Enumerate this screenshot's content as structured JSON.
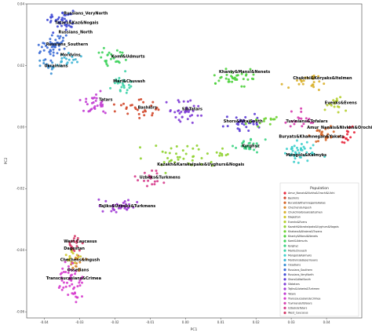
{
  "chart_data": {
    "type": "scatter",
    "title": "",
    "xlabel": "PC1",
    "ylabel": "PC2",
    "xlim": [
      -0.045,
      0.05
    ],
    "ylim": [
      -0.062,
      0.04
    ],
    "xticks": [
      -0.04,
      -0.03,
      -0.02,
      -0.01,
      0.0,
      0.01,
      0.02,
      0.03,
      0.04
    ],
    "xtick_labels": [
      "-0.04",
      "-0.03",
      "-0.02",
      "-0.01",
      "0.00",
      "0.01",
      "0.02",
      "0.03",
      "0.04"
    ],
    "yticks": [
      0.04,
      0.02,
      0.0,
      -0.02,
      -0.04,
      -0.06
    ],
    "ytick_labels": [
      "0.04",
      "0.02",
      "0.00",
      "-0.02",
      "-0.04",
      "-0.06"
    ],
    "grid": false,
    "legend": {
      "title": "Population",
      "placement": "lower-right",
      "entries": [
        {
          "name": "Amur_Nanais&Nivkhs&Orochi&Ulchi",
          "color": "#e8243a"
        },
        {
          "name": "Bashkirs",
          "color": "#d2472a"
        },
        {
          "name": "Buryats&Khamnegan&Hakas",
          "color": "#d6672a"
        },
        {
          "name": "Chechens&Ingush",
          "color": "#d98b2c"
        },
        {
          "name": "Chukchi&Koryaks&Itelmen",
          "color": "#d9b02c"
        },
        {
          "name": "Dagestan",
          "color": "#cfc82e"
        },
        {
          "name": "Evenks&Evens",
          "color": "#b5cf2e"
        },
        {
          "name": "Kazakh&Karakalpaks&Uyghurs&Nogais",
          "color": "#8fd12f"
        },
        {
          "name": "Khakass&Altaians&Tuvans",
          "color": "#6bd232"
        },
        {
          "name": "Khanty&Mansi&Nenets",
          "color": "#4ed23c"
        },
        {
          "name": "Komi&Udmurts",
          "color": "#3ed35c"
        },
        {
          "name": "Kyrghyz",
          "color": "#3cd383"
        },
        {
          "name": "Mari&Chuvash",
          "color": "#3dd3a8"
        },
        {
          "name": "Mongols&Kalmyks",
          "color": "#3dcfcc"
        },
        {
          "name": "Mordvins&Besermyans",
          "color": "#3cb4d4"
        },
        {
          "name": "Ossetians",
          "color": "#3b90d5"
        },
        {
          "name": "Russians_Southern",
          "color": "#3b6bd6"
        },
        {
          "name": "Russians_VeryNorth",
          "color": "#3f4ad6"
        },
        {
          "name": "Shors&AltaiSouth",
          "color": "#5b3bd6"
        },
        {
          "name": "Sibtatars",
          "color": "#7e3bd6"
        },
        {
          "name": "Tajiks&Uzbeks&Turkmen",
          "color": "#a03bd5"
        },
        {
          "name": "Tatars",
          "color": "#c23bd3"
        },
        {
          "name": "Transcaucasians&Crimea",
          "color": "#d63ccd"
        },
        {
          "name": "Tuvinians&Tofalars",
          "color": "#d63cae"
        },
        {
          "name": "Uzbeks&Tatars",
          "color": "#d63c8c"
        },
        {
          "name": "West_Caucasus",
          "color": "#d63c6a"
        }
      ]
    },
    "series": [
      {
        "name": "Russians_VeryNorth",
        "color": "#3f4ad6",
        "cx": -0.0355,
        "cy": 0.035,
        "sx": 0.0025,
        "sy": 0.0025,
        "n": 40
      },
      {
        "name": "Russians_Southern",
        "color": "#3b6bd6",
        "cx": -0.038,
        "cy": 0.0265,
        "sx": 0.0028,
        "sy": 0.0025,
        "n": 45
      },
      {
        "name": "Mordvins&Besermyans",
        "color": "#3cb4d4",
        "cx": -0.034,
        "cy": 0.0215,
        "sx": 0.0025,
        "sy": 0.002,
        "n": 20
      },
      {
        "name": "Ossetians",
        "color": "#3b90d5",
        "cx": -0.039,
        "cy": 0.02,
        "sx": 0.0018,
        "sy": 0.0015,
        "n": 12
      },
      {
        "name": "Komi&Udmurts",
        "color": "#3ed35c",
        "cx": -0.0205,
        "cy": 0.0225,
        "sx": 0.0028,
        "sy": 0.002,
        "n": 25
      },
      {
        "name": "Mari&Chuvash",
        "color": "#3dd3a8",
        "cx": -0.0185,
        "cy": 0.0145,
        "sx": 0.0025,
        "sy": 0.002,
        "n": 25
      },
      {
        "name": "Tatars",
        "color": "#c23bd3",
        "cx": -0.026,
        "cy": 0.0075,
        "sx": 0.003,
        "sy": 0.0025,
        "n": 30
      },
      {
        "name": "Bashkirs",
        "color": "#d2472a",
        "cx": -0.013,
        "cy": 0.006,
        "sx": 0.004,
        "sy": 0.0022,
        "n": 28
      },
      {
        "name": "Sibtatars",
        "color": "#7e3bd6",
        "cx": 0.0,
        "cy": 0.0055,
        "sx": 0.003,
        "sy": 0.003,
        "n": 35
      },
      {
        "name": "Khanty&Mansi&Nenets",
        "color": "#4ed23c",
        "cx": 0.014,
        "cy": 0.0155,
        "sx": 0.0045,
        "sy": 0.0018,
        "n": 35
      },
      {
        "name": "Chukchi&Koryaks&Itelmen",
        "color": "#d9b02c",
        "cx": 0.035,
        "cy": 0.015,
        "sx": 0.004,
        "sy": 0.0018,
        "n": 25
      },
      {
        "name": "Evenks&Evens",
        "color": "#b5cf2e",
        "cx": 0.042,
        "cy": 0.0075,
        "sx": 0.0022,
        "sy": 0.002,
        "n": 15
      },
      {
        "name": "Shors&AltaiSouth",
        "color": "#5b3bd6",
        "cx": 0.017,
        "cy": 0.001,
        "sx": 0.004,
        "sy": 0.0022,
        "n": 30
      },
      {
        "name": "Khakass&Altaians&Tuvans",
        "color": "#6bd232",
        "cx": 0.022,
        "cy": 0.0025,
        "sx": 0.003,
        "sy": 0.0015,
        "n": 15
      },
      {
        "name": "Tuvinians&Tofalars",
        "color": "#d63cae",
        "cx": 0.033,
        "cy": 0.003,
        "sx": 0.0028,
        "sy": 0.0018,
        "n": 18
      },
      {
        "name": "Amur_Nanais&Nivkhs&Orochi&Ulchi",
        "color": "#e8243a",
        "cx": 0.046,
        "cy": -0.002,
        "sx": 0.0018,
        "sy": 0.0022,
        "n": 14
      },
      {
        "name": "Buryats&Khamnegan&Hakas",
        "color": "#d6672a",
        "cx": 0.04,
        "cy": -0.0025,
        "sx": 0.003,
        "sy": 0.002,
        "n": 22
      },
      {
        "name": "Mongols&Kalmyks",
        "color": "#3dcfcc",
        "cx": 0.033,
        "cy": -0.008,
        "sx": 0.0045,
        "sy": 0.0022,
        "n": 40
      },
      {
        "name": "Kyrghyz",
        "color": "#3cd383",
        "cx": 0.017,
        "cy": -0.006,
        "sx": 0.003,
        "sy": 0.002,
        "n": 25
      },
      {
        "name": "Kazakh&Karakalpaks&Uyghurs&Nogais",
        "color": "#8fd12f",
        "cx": 0.0,
        "cy": -0.0095,
        "sx": 0.0085,
        "sy": 0.003,
        "n": 45
      },
      {
        "name": "Uzbeks&Tatars",
        "color": "#d63c8c",
        "cx": -0.0105,
        "cy": -0.0165,
        "sx": 0.0025,
        "sy": 0.002,
        "n": 18
      },
      {
        "name": "Tajiks&Uzbeks&Turkmen",
        "color": "#a03bd5",
        "cx": -0.019,
        "cy": -0.026,
        "sx": 0.0045,
        "sy": 0.0015,
        "n": 30
      },
      {
        "name": "West_Caucasus",
        "color": "#d63c6a",
        "cx": -0.031,
        "cy": -0.0385,
        "sx": 0.0015,
        "sy": 0.0025,
        "n": 22
      },
      {
        "name": "Dagestan",
        "color": "#cfc82e",
        "cx": -0.0315,
        "cy": -0.042,
        "sx": 0.0015,
        "sy": 0.002,
        "n": 14
      },
      {
        "name": "Chechens&Ingush",
        "color": "#d98b2c",
        "cx": -0.0305,
        "cy": -0.0445,
        "sx": 0.0015,
        "sy": 0.0015,
        "n": 14
      },
      {
        "name": "Transcaucasians&Crimea",
        "color": "#d63ccd",
        "cx": -0.0325,
        "cy": -0.0505,
        "sx": 0.0025,
        "sy": 0.0045,
        "n": 50
      }
    ],
    "annotations": [
      {
        "text": "Russians_VeryNorth",
        "x": -0.0345,
        "y": 0.0365
      },
      {
        "text": "Tatars&Kaz&Nogais",
        "x": -0.037,
        "y": 0.0335
      },
      {
        "text": "Russians_North",
        "x": -0.036,
        "y": 0.0305
      },
      {
        "text": "Russians_Southern",
        "x": -0.0395,
        "y": 0.0265
      },
      {
        "text": "Mordvins",
        "x": -0.0355,
        "y": 0.023
      },
      {
        "text": "Ukrainians",
        "x": -0.04,
        "y": 0.0195
      },
      {
        "text": "Komi&Udmurts",
        "x": -0.021,
        "y": 0.0225
      },
      {
        "text": "Mari&Chuvash",
        "x": -0.0205,
        "y": 0.0145
      },
      {
        "text": "Tatars",
        "x": -0.0245,
        "y": 0.0085
      },
      {
        "text": "Bashkirs",
        "x": -0.0135,
        "y": 0.006
      },
      {
        "text": "SibTatars",
        "x": -0.001,
        "y": 0.0055
      },
      {
        "text": "Khanty&Mansi&Nenets",
        "x": 0.0095,
        "y": 0.0175
      },
      {
        "text": "Chukchi&Koryaks&Itelmen",
        "x": 0.0305,
        "y": 0.0155
      },
      {
        "text": "Evenks&Evens",
        "x": 0.0395,
        "y": 0.0075
      },
      {
        "text": "Shors&AltaiSouth",
        "x": 0.0108,
        "y": 0.0015
      },
      {
        "text": "Tuvinians&Tofalars",
        "x": 0.0285,
        "y": 0.0015
      },
      {
        "text": "Amur_Nanais&Nivkhs&Orochi&Ulchi",
        "x": 0.0345,
        "y": -0.0005
      },
      {
        "text": "Buryats&Khamnegan&Yakuts",
        "x": 0.0265,
        "y": -0.0035
      },
      {
        "text": "Kyrghyz",
        "x": 0.016,
        "y": -0.0065
      },
      {
        "text": "Mongols&Kalmyks",
        "x": 0.0285,
        "y": -0.0095
      },
      {
        "text": "Kazakh&Karakalpaks&Uyghurs&Nogais",
        "x": -0.008,
        "y": -0.0125
      },
      {
        "text": "Uzbeks&Turkmens",
        "x": -0.013,
        "y": -0.0168
      },
      {
        "text": "Tajiks&Uzbeks&Turkmens",
        "x": -0.0245,
        "y": -0.026
      },
      {
        "text": "West Caucasus",
        "x": -0.0345,
        "y": -0.0375
      },
      {
        "text": "Dagestan",
        "x": -0.0345,
        "y": -0.0398
      },
      {
        "text": "Chechens&Ingush",
        "x": -0.0355,
        "y": -0.0435
      },
      {
        "text": "Ossetians",
        "x": -0.0335,
        "y": -0.0468
      },
      {
        "text": "Transcaucasians&Crimea",
        "x": -0.0395,
        "y": -0.0495
      }
    ]
  }
}
